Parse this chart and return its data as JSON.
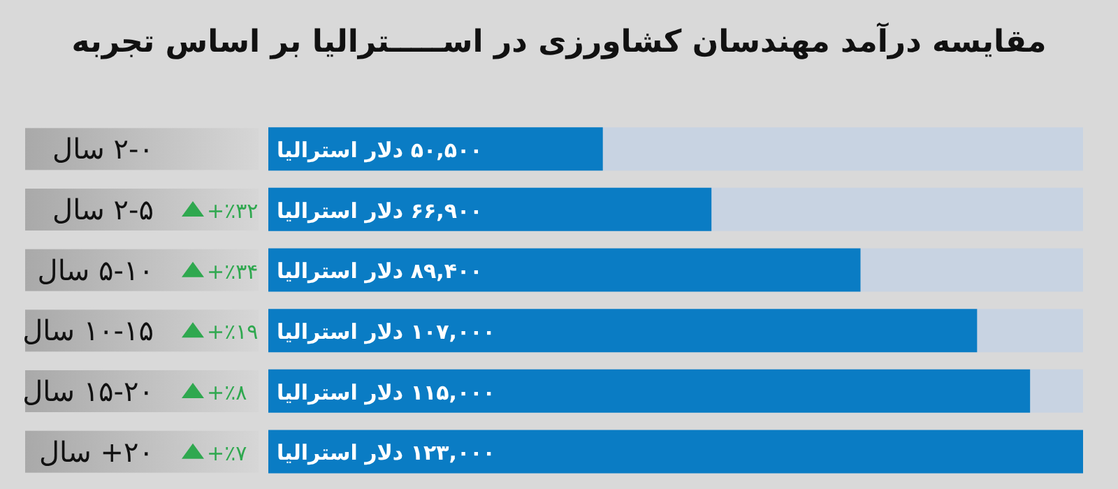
{
  "chart_data": {
    "type": "bar",
    "orientation": "horizontal",
    "title": "مقایسه درآمد مهندسان کشاورزی در اســـــترالیا بر اساس تجربه",
    "categories": [
      "۲-۰ سال",
      "۲-۵ سال",
      "۵-۱۰ سال",
      "۱۰-۱۵ سال",
      "۱۵-۲۰ سال",
      "۲۰+ سال"
    ],
    "values": [
      50500,
      66900,
      89400,
      107000,
      115000,
      123000
    ],
    "value_labels": [
      "۵۰,۵۰۰ دلار استرالیا",
      "۶۶,۹۰۰ دلار استرالیا",
      "۸۹,۴۰۰ دلار استرالیا",
      "۱۰۷,۰۰۰ دلار استرالیا",
      "۱۱۵,۰۰۰ دلار استرالیا",
      "۱۲۳,۰۰۰ دلار استرالیا"
    ],
    "color": "#0a7cc4",
    "xlim": [
      0,
      123000
    ],
    "annotations": [
      "+٪۳۲",
      "+٪۳۴",
      "+٪۱۹",
      "+٪۸",
      "+٪۷"
    ]
  }
}
